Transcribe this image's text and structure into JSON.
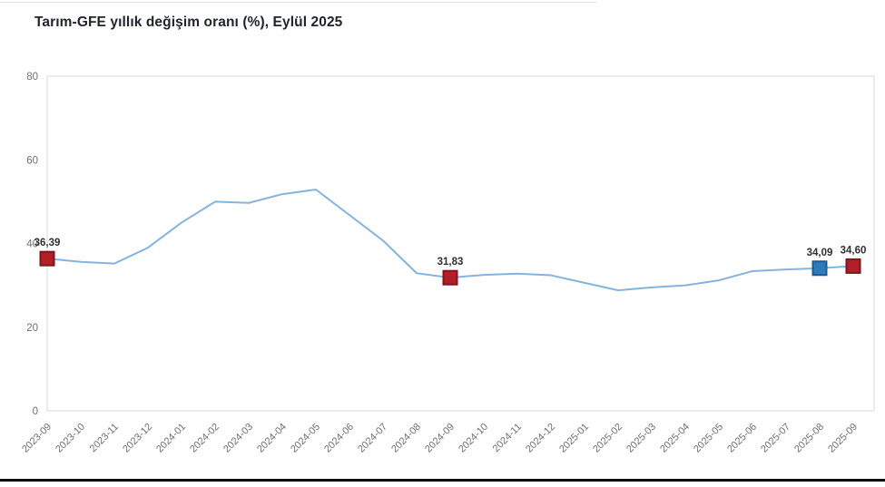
{
  "page": {
    "title": "Tarım-GFE yıllık değişim oranı (%), Eylül 2025"
  },
  "chart_data": {
    "type": "line",
    "title": "Tarım-GFE yıllık değişim oranı (%), Eylül 2025",
    "categories": [
      "2023-09",
      "2023-10",
      "2023-11",
      "2023-12",
      "2024-01",
      "2024-02",
      "2024-03",
      "2024-04",
      "2024-05",
      "2024-06",
      "2024-07",
      "2024-08",
      "2024-09",
      "2024-10",
      "2024-11",
      "2024-12",
      "2025-01",
      "2025-02",
      "2025-03",
      "2025-04",
      "2025-05",
      "2025-06",
      "2025-07",
      "2025-08",
      "2025-09"
    ],
    "values": [
      36.39,
      35.6,
      35.2,
      39.0,
      45.0,
      50.0,
      49.7,
      51.8,
      52.9,
      46.8,
      40.7,
      32.9,
      31.83,
      32.5,
      32.8,
      32.4,
      30.6,
      28.8,
      29.5,
      30.0,
      31.2,
      33.4,
      33.8,
      34.09,
      34.6
    ],
    "ylim": [
      0,
      80
    ],
    "yticks": [
      0,
      20,
      40,
      60,
      80
    ],
    "grid": false,
    "legend": "none",
    "line_color": "#85b3df",
    "axis_frame_color": "#d9d9d9",
    "tick_label_color": "#6f6f6f",
    "data_label_color": "#303030",
    "highlighted_points": [
      {
        "index": 0,
        "category": "2023-09",
        "value": 36.39,
        "label": "36,39",
        "fill": "#b21f28",
        "border": "#7e151b"
      },
      {
        "index": 12,
        "category": "2024-09",
        "value": 31.83,
        "label": "31,83",
        "fill": "#b21f28",
        "border": "#7e151b"
      },
      {
        "index": 23,
        "category": "2025-08",
        "value": 34.09,
        "label": "34,09",
        "fill": "#2f7ab9",
        "border": "#1d5c94"
      },
      {
        "index": 24,
        "category": "2025-09",
        "value": 34.6,
        "label": "34,60",
        "fill": "#b21f28",
        "border": "#7e151b"
      }
    ]
  }
}
